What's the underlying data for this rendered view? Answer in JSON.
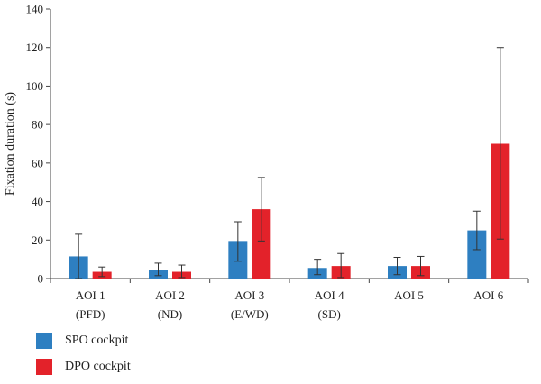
{
  "chart_data": {
    "type": "bar",
    "ylabel": "Fixation duration (s)",
    "ylim": [
      0,
      140
    ],
    "yticks": [
      0,
      20,
      40,
      60,
      80,
      100,
      120,
      140
    ],
    "grid": false,
    "legend_position": "bottom-left",
    "categories": [
      [
        "AOI 1",
        "(PFD)"
      ],
      [
        "AOI 2",
        "(ND)"
      ],
      [
        "AOI 3",
        "(E/WD)"
      ],
      [
        "AOI 4",
        "(SD)"
      ],
      [
        "AOI 5",
        ""
      ],
      [
        "AOI 6",
        ""
      ]
    ],
    "series": [
      {
        "name": "SPO cockpit",
        "color": "#2e7fc1",
        "values": [
          11.5,
          4.5,
          19.5,
          5.5,
          6.5,
          25
        ],
        "error_low": [
          0,
          1.5,
          9,
          2,
          2,
          15
        ],
        "error_high": [
          23,
          8,
          29.5,
          10,
          11,
          35
        ]
      },
      {
        "name": "DPO cockpit",
        "color": "#e3222a",
        "values": [
          3.5,
          3.5,
          36,
          6.5,
          6.5,
          70
        ],
        "error_low": [
          1,
          0.5,
          19.5,
          0.5,
          1.5,
          20.5
        ],
        "error_high": [
          6,
          7,
          52.5,
          13,
          11.5,
          120
        ]
      }
    ]
  }
}
